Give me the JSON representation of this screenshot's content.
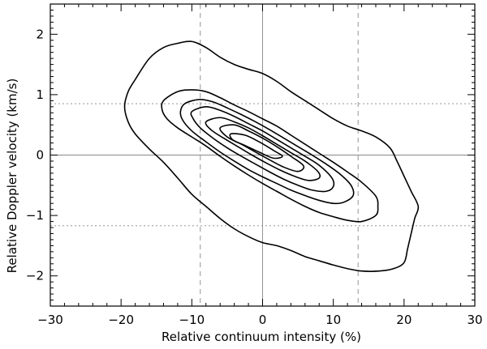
{
  "chart_data": {
    "type": "contour",
    "xlabel": "Relative continuum intensity (%)",
    "ylabel": "Relative Doppler velocity (km/s)",
    "xlim": [
      -30,
      30
    ],
    "ylim": [
      -2.5,
      2.5
    ],
    "x_ticks": [
      -30,
      -20,
      -10,
      0,
      10,
      20,
      30
    ],
    "y_ticks": [
      -2,
      -1,
      0,
      1,
      2
    ],
    "x_tick_labels": [
      "−30",
      "−20",
      "−10",
      "0",
      "10",
      "20",
      "30"
    ],
    "y_tick_labels": [
      "−2",
      "−1",
      "0",
      "1",
      "2"
    ],
    "reference_lines": [
      {
        "orientation": "vertical",
        "value": 0,
        "style": "solid"
      },
      {
        "orientation": "horizontal",
        "value": 0,
        "style": "solid"
      },
      {
        "orientation": "vertical",
        "value": -8.8,
        "style": "dashed"
      },
      {
        "orientation": "vertical",
        "value": 13.5,
        "style": "dashed"
      },
      {
        "orientation": "horizontal",
        "value": 0.85,
        "style": "dotted"
      },
      {
        "orientation": "horizontal",
        "value": -1.17,
        "style": "dotted"
      }
    ],
    "contours": [
      {
        "level": 1,
        "points": [
          [
            -18,
            1.25
          ],
          [
            -16,
            1.6
          ],
          [
            -14,
            1.78
          ],
          [
            -12,
            1.85
          ],
          [
            -10,
            1.88
          ],
          [
            -8,
            1.78
          ],
          [
            -6,
            1.62
          ],
          [
            -4,
            1.5
          ],
          [
            -2,
            1.42
          ],
          [
            0,
            1.35
          ],
          [
            2,
            1.22
          ],
          [
            4,
            1.05
          ],
          [
            6,
            0.9
          ],
          [
            8,
            0.75
          ],
          [
            10,
            0.6
          ],
          [
            12,
            0.48
          ],
          [
            14,
            0.4
          ],
          [
            16,
            0.3
          ],
          [
            18,
            0.12
          ],
          [
            19,
            -0.1
          ],
          [
            20,
            -0.35
          ],
          [
            21,
            -0.6
          ],
          [
            22,
            -0.85
          ],
          [
            21.5,
            -1.05
          ],
          [
            21,
            -1.3
          ],
          [
            20.5,
            -1.55
          ],
          [
            20,
            -1.78
          ],
          [
            18.5,
            -1.88
          ],
          [
            16.5,
            -1.92
          ],
          [
            14,
            -1.92
          ],
          [
            12,
            -1.88
          ],
          [
            10,
            -1.82
          ],
          [
            8,
            -1.75
          ],
          [
            6,
            -1.68
          ],
          [
            4,
            -1.58
          ],
          [
            2,
            -1.5
          ],
          [
            0,
            -1.45
          ],
          [
            -2,
            -1.35
          ],
          [
            -4,
            -1.22
          ],
          [
            -6,
            -1.05
          ],
          [
            -8,
            -0.85
          ],
          [
            -10,
            -0.65
          ],
          [
            -12,
            -0.38
          ],
          [
            -14,
            -0.12
          ],
          [
            -16,
            0.1
          ],
          [
            -18,
            0.35
          ],
          [
            -19,
            0.55
          ],
          [
            -19.5,
            0.8
          ],
          [
            -19,
            1.05
          ]
        ]
      },
      {
        "level": 2,
        "points": [
          [
            -14,
            0.9
          ],
          [
            -12,
            1.05
          ],
          [
            -10,
            1.08
          ],
          [
            -8,
            1.05
          ],
          [
            -6,
            0.95
          ],
          [
            -4,
            0.83
          ],
          [
            -2,
            0.72
          ],
          [
            0,
            0.6
          ],
          [
            2,
            0.48
          ],
          [
            4,
            0.33
          ],
          [
            6,
            0.18
          ],
          [
            8,
            0.03
          ],
          [
            10,
            -0.12
          ],
          [
            12,
            -0.28
          ],
          [
            14,
            -0.45
          ],
          [
            16,
            -0.68
          ],
          [
            16.3,
            -0.85
          ],
          [
            16,
            -1.0
          ],
          [
            14,
            -1.1
          ],
          [
            12,
            -1.08
          ],
          [
            10,
            -1.02
          ],
          [
            8,
            -0.95
          ],
          [
            6,
            -0.85
          ],
          [
            4,
            -0.73
          ],
          [
            2,
            -0.6
          ],
          [
            0,
            -0.47
          ],
          [
            -2,
            -0.33
          ],
          [
            -4,
            -0.18
          ],
          [
            -6,
            -0.02
          ],
          [
            -8,
            0.15
          ],
          [
            -10,
            0.3
          ],
          [
            -12,
            0.45
          ],
          [
            -13.5,
            0.6
          ],
          [
            -14.2,
            0.75
          ]
        ]
      },
      {
        "level": 3,
        "points": [
          [
            -11,
            0.85
          ],
          [
            -9,
            0.92
          ],
          [
            -7,
            0.88
          ],
          [
            -5,
            0.78
          ],
          [
            -3,
            0.67
          ],
          [
            -1,
            0.55
          ],
          [
            1,
            0.42
          ],
          [
            3,
            0.28
          ],
          [
            5,
            0.14
          ],
          [
            7,
            0.0
          ],
          [
            9,
            -0.15
          ],
          [
            11,
            -0.32
          ],
          [
            12.5,
            -0.5
          ],
          [
            12.8,
            -0.67
          ],
          [
            11.5,
            -0.78
          ],
          [
            10,
            -0.8
          ],
          [
            8,
            -0.75
          ],
          [
            6,
            -0.67
          ],
          [
            4,
            -0.58
          ],
          [
            2,
            -0.47
          ],
          [
            0,
            -0.36
          ],
          [
            -2,
            -0.24
          ],
          [
            -4,
            -0.1
          ],
          [
            -6,
            0.05
          ],
          [
            -8,
            0.22
          ],
          [
            -10,
            0.4
          ],
          [
            -11.3,
            0.58
          ],
          [
            -11.6,
            0.72
          ]
        ]
      },
      {
        "level": 4,
        "points": [
          [
            -10,
            0.72
          ],
          [
            -8,
            0.8
          ],
          [
            -6,
            0.74
          ],
          [
            -4,
            0.64
          ],
          [
            -2,
            0.52
          ],
          [
            0,
            0.4
          ],
          [
            2,
            0.26
          ],
          [
            4,
            0.12
          ],
          [
            6,
            -0.02
          ],
          [
            8,
            -0.17
          ],
          [
            9.8,
            -0.38
          ],
          [
            10,
            -0.52
          ],
          [
            9,
            -0.6
          ],
          [
            7,
            -0.58
          ],
          [
            5,
            -0.5
          ],
          [
            3,
            -0.4
          ],
          [
            1,
            -0.28
          ],
          [
            -1,
            -0.15
          ],
          [
            -3,
            -0.02
          ],
          [
            -5,
            0.12
          ],
          [
            -7,
            0.28
          ],
          [
            -8.8,
            0.45
          ],
          [
            -9.8,
            0.6
          ]
        ]
      },
      {
        "level": 5,
        "points": [
          [
            -8,
            0.55
          ],
          [
            -6,
            0.62
          ],
          [
            -4,
            0.55
          ],
          [
            -2,
            0.45
          ],
          [
            0,
            0.32
          ],
          [
            2,
            0.18
          ],
          [
            4,
            0.04
          ],
          [
            6,
            -0.1
          ],
          [
            7.8,
            -0.27
          ],
          [
            8,
            -0.38
          ],
          [
            6.5,
            -0.42
          ],
          [
            4.5,
            -0.35
          ],
          [
            2.5,
            -0.25
          ],
          [
            0.5,
            -0.13
          ],
          [
            -1.5,
            0.0
          ],
          [
            -3.5,
            0.14
          ],
          [
            -5.5,
            0.28
          ],
          [
            -7.3,
            0.42
          ]
        ]
      },
      {
        "level": 6,
        "points": [
          [
            -6,
            0.45
          ],
          [
            -4,
            0.5
          ],
          [
            -2,
            0.4
          ],
          [
            0,
            0.28
          ],
          [
            2,
            0.14
          ],
          [
            4,
            -0.02
          ],
          [
            5.8,
            -0.18
          ],
          [
            5,
            -0.27
          ],
          [
            3,
            -0.2
          ],
          [
            1,
            -0.08
          ],
          [
            -1,
            0.05
          ],
          [
            -3,
            0.18
          ],
          [
            -5,
            0.3
          ]
        ]
      },
      {
        "level": 7,
        "points": [
          [
            -4.5,
            0.35
          ],
          [
            -2.5,
            0.33
          ],
          [
            -0.5,
            0.22
          ],
          [
            1.5,
            0.08
          ],
          [
            2.8,
            -0.02
          ],
          [
            1.5,
            -0.05
          ],
          [
            -0.5,
            0.05
          ],
          [
            -2.5,
            0.16
          ],
          [
            -4.2,
            0.25
          ]
        ]
      }
    ]
  }
}
